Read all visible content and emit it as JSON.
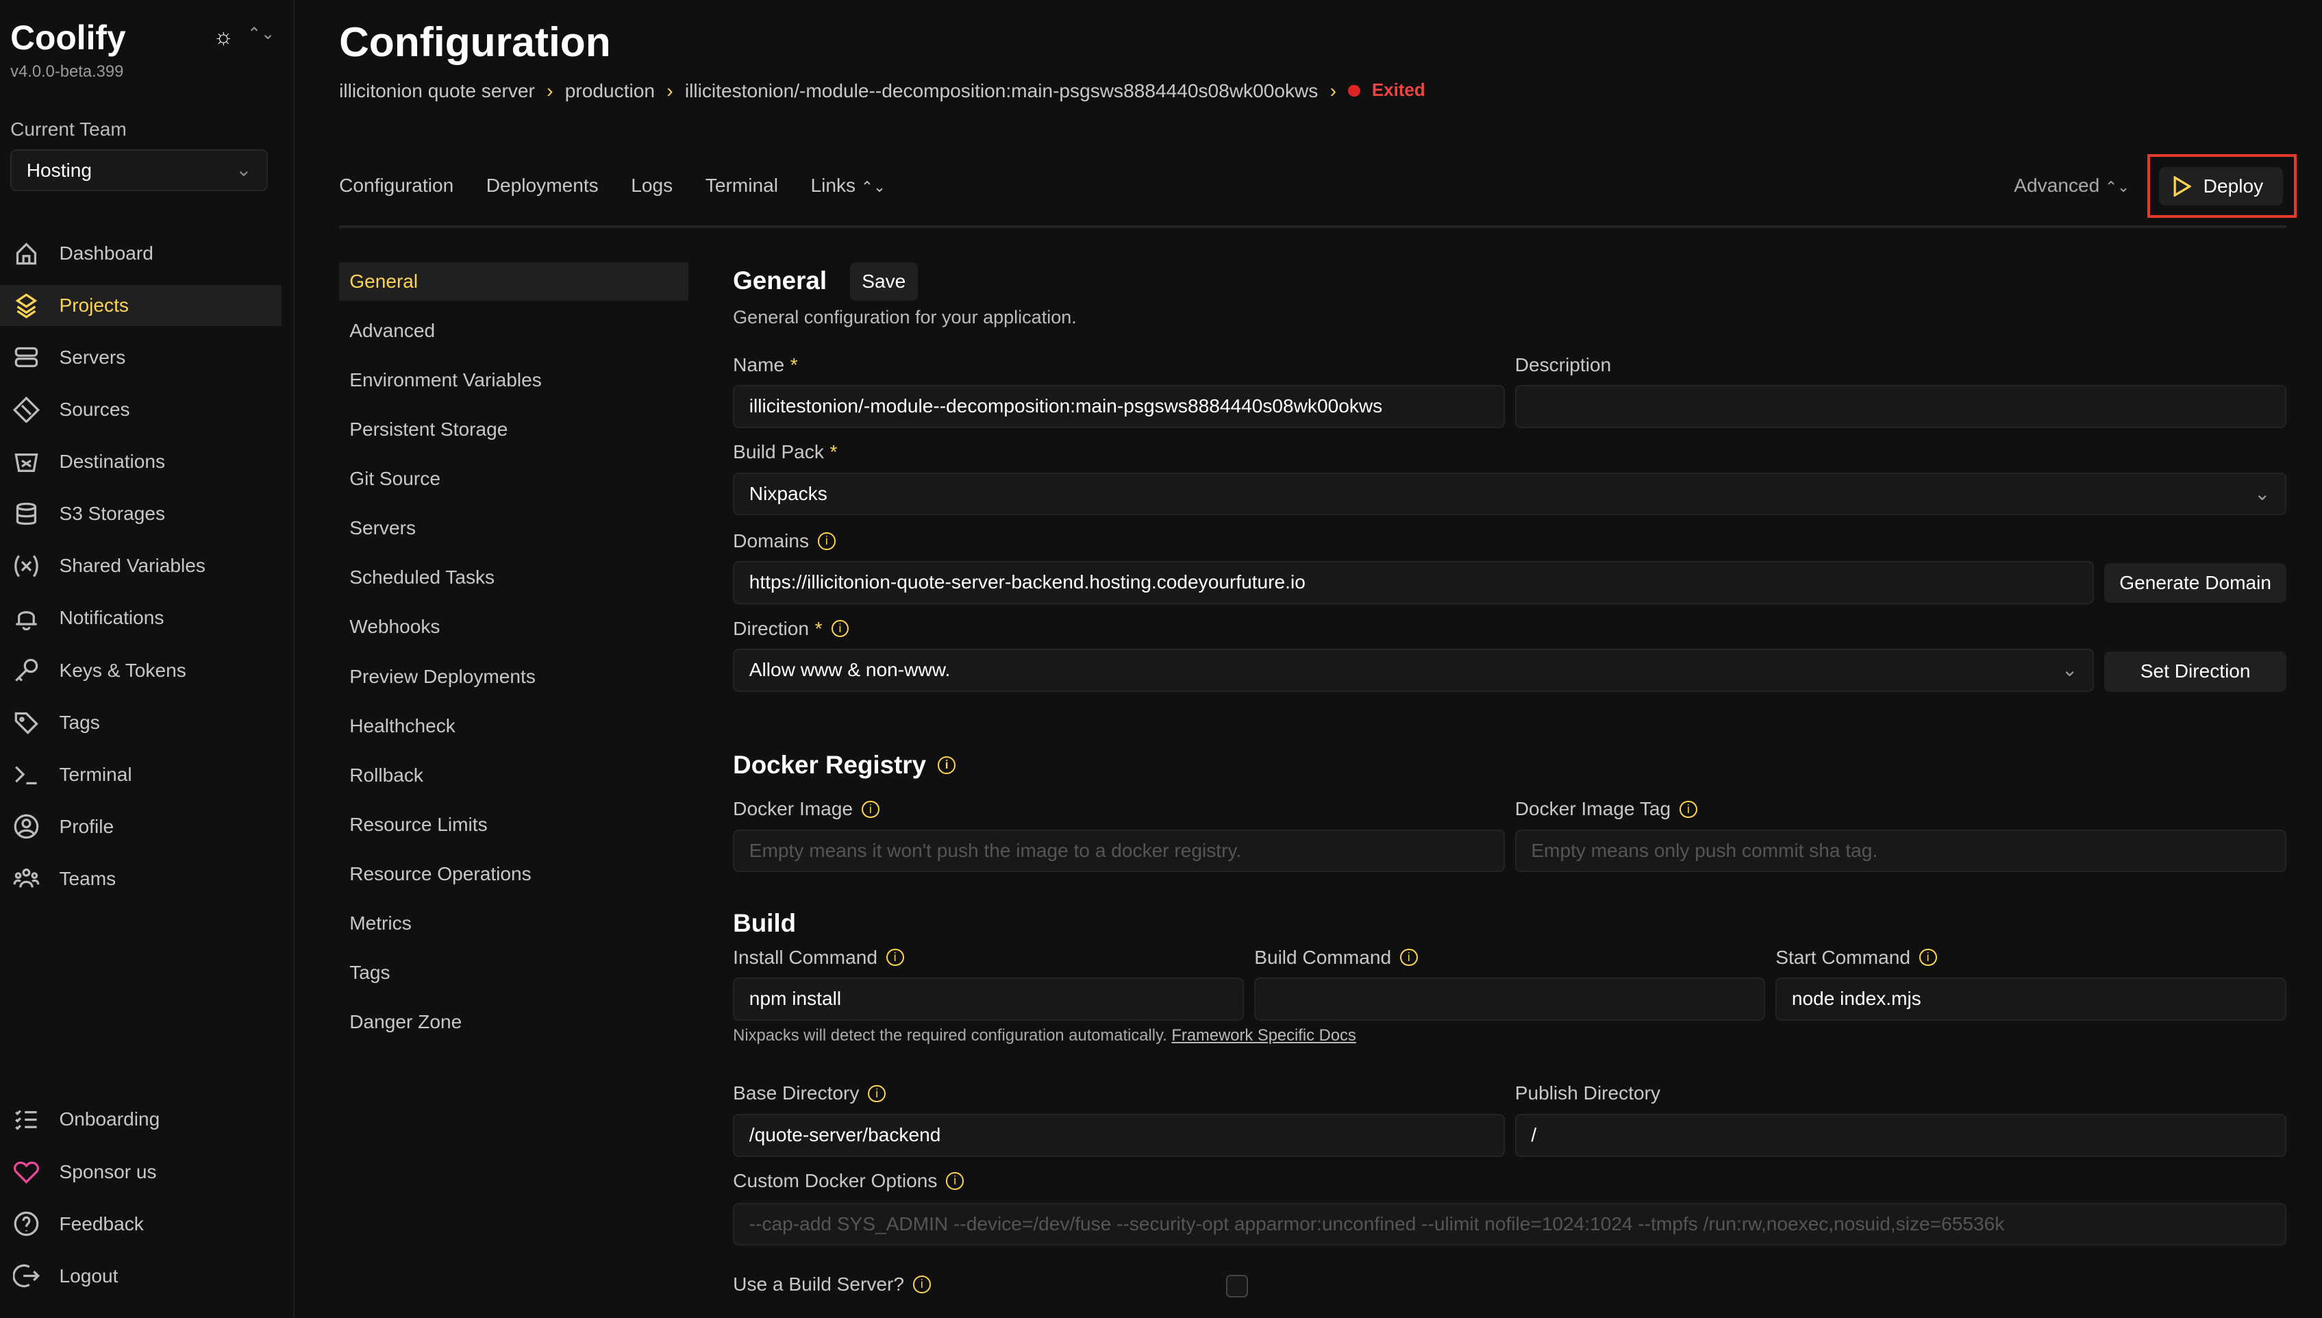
{
  "app": {
    "name": "Coolify",
    "version": "v4.0.0-beta.399"
  },
  "team": {
    "label": "Current Team",
    "value": "Hosting"
  },
  "sidebar": {
    "items": [
      {
        "label": "Dashboard",
        "icon": "home-icon"
      },
      {
        "label": "Projects",
        "icon": "layers-icon",
        "active": true
      },
      {
        "label": "Servers",
        "icon": "server-icon"
      },
      {
        "label": "Sources",
        "icon": "git-icon"
      },
      {
        "label": "Destinations",
        "icon": "destination-icon"
      },
      {
        "label": "S3 Storages",
        "icon": "database-icon"
      },
      {
        "label": "Shared Variables",
        "icon": "variable-icon"
      },
      {
        "label": "Notifications",
        "icon": "bell-icon"
      },
      {
        "label": "Keys & Tokens",
        "icon": "key-icon"
      },
      {
        "label": "Tags",
        "icon": "tag-icon"
      },
      {
        "label": "Terminal",
        "icon": "terminal-icon"
      },
      {
        "label": "Profile",
        "icon": "user-icon"
      },
      {
        "label": "Teams",
        "icon": "users-icon"
      }
    ],
    "bottom": [
      {
        "label": "Onboarding",
        "icon": "list-icon"
      },
      {
        "label": "Sponsor us",
        "icon": "heart-icon"
      },
      {
        "label": "Feedback",
        "icon": "question-icon"
      },
      {
        "label": "Logout",
        "icon": "logout-icon"
      }
    ]
  },
  "header": {
    "title": "Configuration",
    "breadcrumb": [
      "illicitonion quote server",
      "production",
      "illicitestonion/-module--decomposition:main-psgsws8884440s08wk00okws"
    ],
    "status": "Exited"
  },
  "tabs": [
    "Configuration",
    "Deployments",
    "Logs",
    "Terminal",
    "Links"
  ],
  "advanced_label": "Advanced",
  "deploy_label": "Deploy",
  "subnav": [
    "General",
    "Advanced",
    "Environment Variables",
    "Persistent Storage",
    "Git Source",
    "Servers",
    "Scheduled Tasks",
    "Webhooks",
    "Preview Deployments",
    "Healthcheck",
    "Rollback",
    "Resource Limits",
    "Resource Operations",
    "Metrics",
    "Tags",
    "Danger Zone"
  ],
  "general": {
    "title": "General",
    "save": "Save",
    "description": "General configuration for your application.",
    "name_label": "Name",
    "name_value": "illicitestonion/-module--decomposition:main-psgsws8884440s08wk00okws",
    "description_label": "Description",
    "description_value": "",
    "buildpack_label": "Build Pack",
    "buildpack_value": "Nixpacks",
    "domains_label": "Domains",
    "domains_value": "https://illicitonion-quote-server-backend.hosting.codeyourfuture.io",
    "generate_domain": "Generate Domain",
    "direction_label": "Direction",
    "direction_value": "Allow www & non-www.",
    "set_direction": "Set Direction"
  },
  "docker": {
    "title": "Docker Registry",
    "image_label": "Docker Image",
    "image_placeholder": "Empty means it won't push the image to a docker registry.",
    "tag_label": "Docker Image Tag",
    "tag_placeholder": "Empty means only push commit sha tag."
  },
  "build": {
    "title": "Build",
    "install_label": "Install Command",
    "install_value": "npm install",
    "build_label": "Build Command",
    "build_value": "",
    "start_label": "Start Command",
    "start_value": "node index.mjs",
    "hint": "Nixpacks will detect the required configuration automatically.",
    "hint_link": "Framework Specific Docs",
    "base_label": "Base Directory",
    "base_value": "/quote-server/backend",
    "publish_label": "Publish Directory",
    "publish_value": "/",
    "docker_opts_label": "Custom Docker Options",
    "docker_opts_placeholder": "--cap-add SYS_ADMIN --device=/dev/fuse --security-opt apparmor:unconfined --ulimit nofile=1024:1024 --tmpfs /run:rw,noexec,nosuid,size=65536k",
    "build_server_label": "Use a Build Server?",
    "build_server_checked": false
  },
  "colors": {
    "accent": "#fcd452",
    "status_exited": "#ef4444",
    "highlight_box": "#e5392a"
  }
}
